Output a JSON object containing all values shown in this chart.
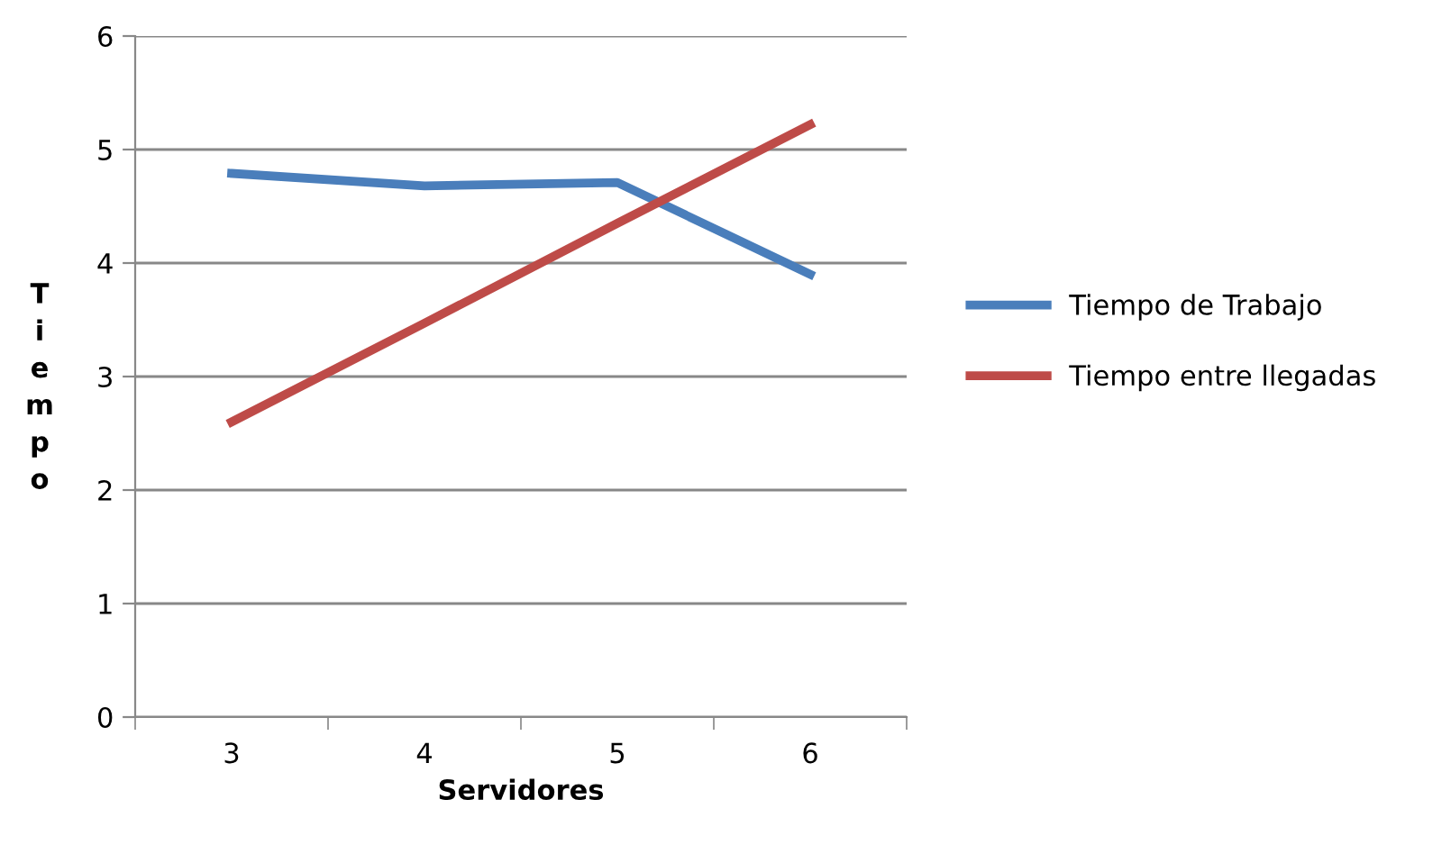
{
  "chart_data": {
    "type": "line",
    "xlabel": "Servidores",
    "ylabel": "Tiempo",
    "categories": [
      "3",
      "4",
      "5",
      "6"
    ],
    "series": [
      {
        "name": "Tiempo de Trabajo",
        "color": "#4a7ebb",
        "values": [
          4.79,
          4.68,
          4.71,
          3.9
        ]
      },
      {
        "name": "Tiempo entre llegadas",
        "color": "#be4b48",
        "values": [
          2.6,
          3.47,
          4.35,
          5.22
        ]
      }
    ],
    "ylim": [
      0,
      6
    ],
    "yticks": [
      0,
      1,
      2,
      3,
      4,
      5,
      6
    ],
    "grid": "y",
    "legend": "right",
    "marker": "none",
    "line_style": "solid"
  }
}
